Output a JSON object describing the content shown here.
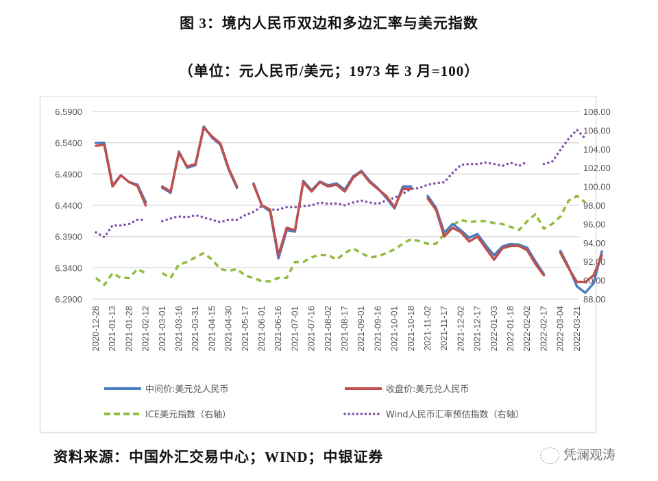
{
  "title": "图 3：境内人民币双边和多边汇率与美元指数",
  "subtitle": "（单位：元人民币/美元；1973 年 3 月=100）",
  "source": "资料来源：中国外汇交易中心；WIND；中银证券",
  "watermark": "凭澜观涛",
  "chart_data": {
    "type": "line",
    "title": "图 3：境内人民币双边和多边汇率与美元指数",
    "x_tick_labels": [
      "2020-12-28",
      "2021-01-13",
      "2021-01-28",
      "2021-02-12",
      "2021-03-01",
      "2021-03-16",
      "2021-03-31",
      "2021-04-15",
      "2021-04-30",
      "2021-05-17",
      "2021-06-01",
      "2021-06-16",
      "2021-07-01",
      "2021-07-16",
      "2021-08-02",
      "2021-08-17",
      "2021-09-01",
      "2021-09-16",
      "2021-10-01",
      "2021-10-18",
      "2021-11-02",
      "2021-11-17",
      "2021-12-02",
      "2021-12-17",
      "2022-01-03",
      "2022-01-18",
      "2022-02-02",
      "2022-02-17",
      "2022-03-04",
      "2022-03-21"
    ],
    "x_sample_step": 0.5,
    "y_left": {
      "range": [
        6.29,
        6.59
      ],
      "ticks": [
        "6.5900",
        "6.5400",
        "6.4900",
        "6.4400",
        "6.3900",
        "6.3400",
        "6.2900"
      ],
      "values": [
        6.59,
        6.54,
        6.49,
        6.44,
        6.39,
        6.34,
        6.29
      ]
    },
    "y_right": {
      "range": [
        88,
        108
      ],
      "ticks": [
        "108.00",
        "106.00",
        "104.00",
        "102.00",
        "100.00",
        "98.00",
        "96.00",
        "94.00",
        "92.00",
        "90.00",
        "88.00"
      ],
      "values": [
        108,
        106,
        104,
        102,
        100,
        98,
        96,
        94,
        92,
        90,
        88
      ]
    },
    "grid": true,
    "legend_position": "bottom",
    "colors": {
      "blue": "#4a7ebf",
      "red": "#c0504d",
      "green": "#8fbc3c",
      "purple": "#7f4fa8",
      "grid": "#d9d9d9"
    },
    "series": [
      {
        "name": "中间价:美元兑人民币",
        "axis": "left",
        "style": "solid",
        "color": "#4a7ebf",
        "values": [
          6.54,
          6.54,
          6.472,
          6.488,
          6.477,
          6.473,
          6.445,
          null,
          6.468,
          6.46,
          6.526,
          6.5,
          6.504,
          6.566,
          6.548,
          6.537,
          6.497,
          6.468,
          null,
          6.475,
          6.44,
          6.43,
          6.355,
          6.4,
          6.398,
          6.479,
          6.464,
          6.478,
          6.472,
          6.475,
          6.465,
          6.486,
          6.495,
          6.479,
          6.467,
          6.452,
          6.435,
          6.47,
          6.47,
          null,
          6.455,
          6.436,
          6.396,
          6.41,
          6.4,
          6.388,
          6.394,
          6.376,
          6.36,
          6.374,
          6.378,
          6.377,
          6.372,
          6.35,
          6.33,
          null,
          6.367,
          6.341,
          6.31,
          6.3,
          6.315,
          6.366
        ]
      },
      {
        "name": "收盘价:美元兑人民币",
        "axis": "left",
        "style": "solid",
        "color": "#c0504d",
        "values": [
          6.535,
          6.537,
          6.47,
          6.488,
          6.477,
          6.471,
          6.44,
          null,
          6.47,
          6.462,
          6.524,
          6.502,
          6.506,
          6.564,
          6.55,
          6.539,
          6.499,
          6.47,
          null,
          6.473,
          6.44,
          6.433,
          6.36,
          6.404,
          6.4,
          6.477,
          6.462,
          6.477,
          6.47,
          6.473,
          6.462,
          6.484,
          6.494,
          6.477,
          6.466,
          6.455,
          6.437,
          6.466,
          6.466,
          null,
          6.451,
          6.433,
          6.39,
          6.404,
          6.397,
          6.382,
          6.39,
          6.371,
          6.353,
          6.371,
          6.375,
          6.375,
          6.368,
          6.346,
          6.328,
          null,
          6.364,
          6.339,
          6.317,
          6.317,
          6.328,
          6.36
        ]
      },
      {
        "name": "ICE美元指数（右轴）",
        "axis": "right",
        "style": "dashed",
        "color": "#8fbc3c",
        "values": [
          90.25,
          89.5,
          90.75,
          90.25,
          90.25,
          91.2,
          90.75,
          null,
          90.75,
          90.25,
          91.7,
          91.95,
          92.45,
          92.9,
          92.2,
          91.2,
          91.0,
          91.2,
          90.5,
          90.25,
          89.9,
          89.9,
          90.25,
          90.25,
          91.95,
          91.95,
          92.45,
          92.7,
          92.7,
          92.2,
          92.9,
          93.4,
          92.9,
          92.45,
          92.55,
          92.9,
          93.3,
          93.9,
          94.4,
          94.15,
          93.9,
          93.9,
          94.9,
          95.85,
          96.45,
          96.2,
          96.3,
          96.3,
          96.1,
          96.0,
          95.7,
          95.35,
          96.3,
          97.05,
          95.5,
          96.0,
          96.8,
          98.5,
          99.0,
          98.3
        ]
      },
      {
        "name": "Wind人民币汇率预估指数（右轴）",
        "axis": "right",
        "style": "dotted",
        "color": "#7f4fa8",
        "values": [
          95.1,
          94.6,
          95.85,
          95.85,
          96.0,
          96.45,
          96.45,
          null,
          96.3,
          96.6,
          96.8,
          96.7,
          96.95,
          96.7,
          96.45,
          96.2,
          96.45,
          96.45,
          96.95,
          97.3,
          97.9,
          97.55,
          97.55,
          97.8,
          97.8,
          97.9,
          98.0,
          98.3,
          98.15,
          98.2,
          98.0,
          98.3,
          98.5,
          98.3,
          98.15,
          98.5,
          98.8,
          99.25,
          99.75,
          99.85,
          100.2,
          100.35,
          100.45,
          101.45,
          102.3,
          102.4,
          102.4,
          102.55,
          102.4,
          102.2,
          102.55,
          102.2,
          102.65,
          null,
          102.4,
          102.65,
          103.9,
          105.1,
          106.05,
          105.1
        ]
      }
    ]
  }
}
